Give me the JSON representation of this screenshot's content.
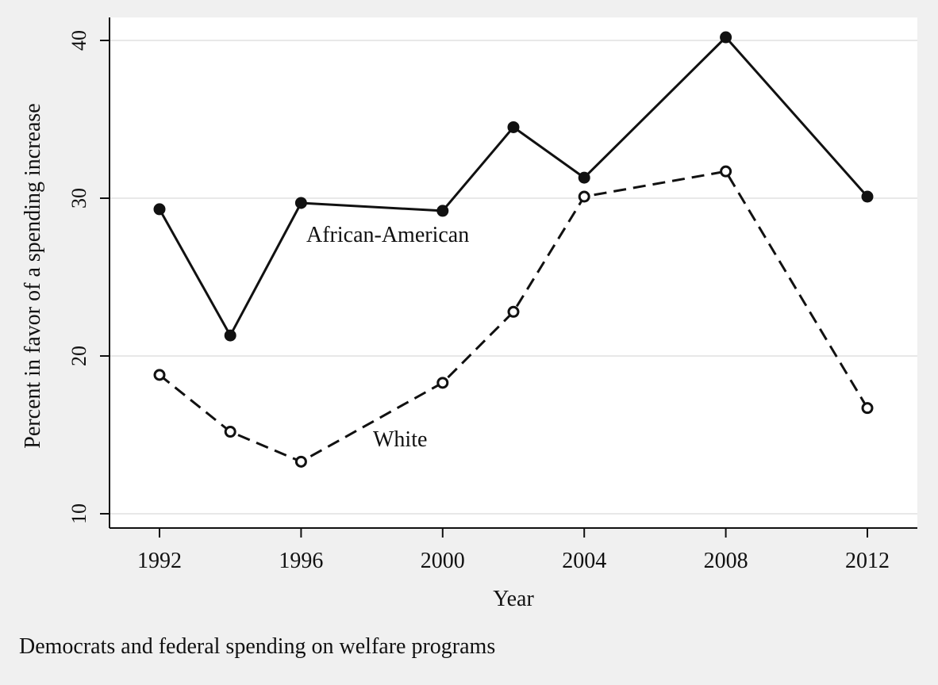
{
  "caption": "Democrats and federal spending on welfare programs",
  "colors": {
    "background": "#f0f0f0",
    "plot_background": "#ffffff",
    "line": "#111111",
    "grid": "#e8e8e8"
  },
  "chart_data": {
    "type": "line",
    "xlabel": "Year",
    "ylabel": "Percent in favor of a spending increase",
    "x": [
      1992,
      1994,
      1996,
      2000,
      2002,
      2004,
      2008,
      2012
    ],
    "xticks": [
      1992,
      1996,
      2000,
      2004,
      2008,
      2012
    ],
    "yticks": [
      10,
      20,
      30,
      40
    ],
    "grid": true,
    "series": [
      {
        "name": "African-American",
        "values": [
          29.3,
          21.3,
          29.7,
          29.2,
          34.5,
          31.3,
          40.2,
          30.1
        ],
        "line_style": "solid",
        "marker": "filled-circle"
      },
      {
        "name": "White",
        "values": [
          18.8,
          15.2,
          13.3,
          18.3,
          22.8,
          30.1,
          31.7,
          16.7
        ],
        "line_style": "dashed",
        "marker": "hollow-circle"
      }
    ]
  }
}
